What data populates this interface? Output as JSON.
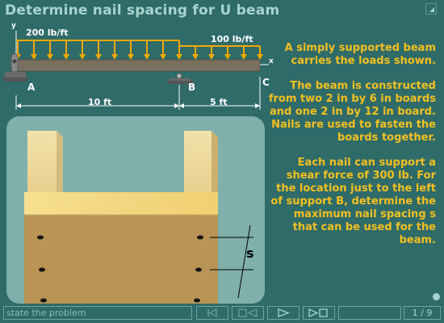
{
  "header": {
    "title": "Determine nail spacing for U beam"
  },
  "beam": {
    "load_left": "200 lb/ft",
    "load_right": "100 lb/ft",
    "axis_y": "y",
    "axis_x": "x",
    "support_a": "A",
    "support_b": "B",
    "end_c": "C",
    "span_ab": "10 ft",
    "span_bc": "5 ft"
  },
  "description": {
    "p1": "A simply supported beam carries the loads shown.",
    "p2": "The beam is constructed from two 2 in by 6 in boards and one 2 in by 12 in board. Nails are used to fasten the boards together.",
    "p3": "Each nail can support a shear force of 300 lb.  For the location just to the left of support B, determine the maximum nail spacing s that can be used for the beam."
  },
  "figure": {
    "spacing_label": "s"
  },
  "footer": {
    "status": "state the problem",
    "page": "1",
    "total": "9",
    "page_sep": "/"
  },
  "colors": {
    "background": "#2e6b69",
    "title": "#a9d3cf",
    "text_accent": "#f4c020",
    "load_arrows": "#f4a800",
    "panel": "#7fb0ac"
  },
  "icons": {
    "corner": "expand-icon",
    "nav_first": "first-page-icon",
    "nav_back": "step-back-icon",
    "nav_play": "play-icon",
    "nav_forward": "step-forward-icon",
    "progress": "progress-dot-icon"
  }
}
